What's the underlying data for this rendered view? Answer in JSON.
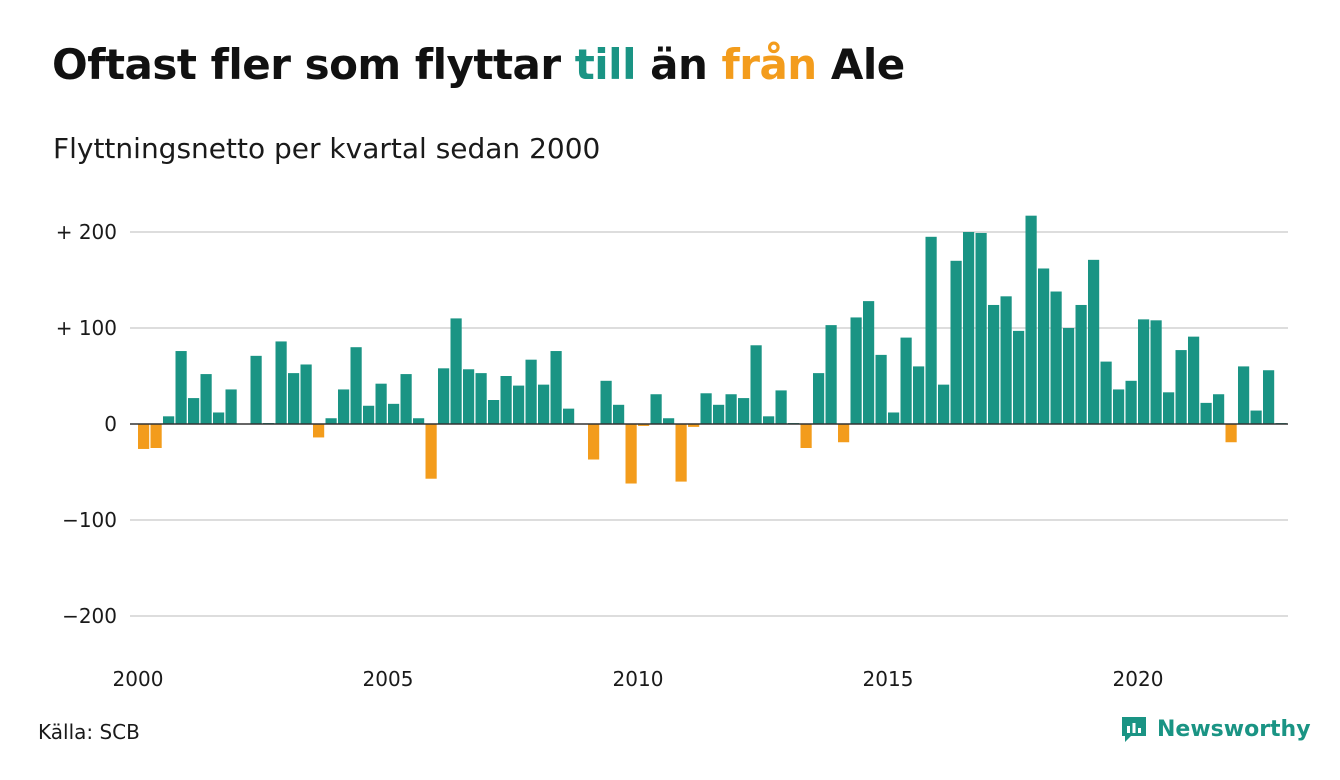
{
  "header": {
    "title_parts": [
      "Oftast fler som flyttar ",
      "till",
      " än ",
      "från",
      " Ale"
    ],
    "subtitle": "Flyttningsnetto per kvartal sedan 2000"
  },
  "footer": {
    "source": "Källa: SCB",
    "brand": "Newsworthy"
  },
  "icons": {
    "brand_logo": "newsworthy-logo-icon"
  },
  "colors": {
    "positive": "#1a9484",
    "negative": "#f39c1c",
    "grid": "#dddddd",
    "zero_line": "#333333"
  },
  "chart_data": {
    "type": "bar",
    "title": "Oftast fler som flyttar till än från Ale",
    "subtitle": "Flyttningsnetto per kvartal sedan 2000",
    "x": [
      "2000 Q1",
      "2000 Q2",
      "2000 Q3",
      "2000 Q4",
      "2001 Q1",
      "2001 Q2",
      "2001 Q3",
      "2001 Q4",
      "2002 Q1",
      "2002 Q2",
      "2002 Q3",
      "2002 Q4",
      "2003 Q1",
      "2003 Q2",
      "2003 Q3",
      "2003 Q4",
      "2004 Q1",
      "2004 Q2",
      "2004 Q3",
      "2004 Q4",
      "2005 Q1",
      "2005 Q2",
      "2005 Q3",
      "2005 Q4",
      "2006 Q1",
      "2006 Q2",
      "2006 Q3",
      "2006 Q4",
      "2007 Q1",
      "2007 Q2",
      "2007 Q3",
      "2007 Q4",
      "2008 Q1",
      "2008 Q2",
      "2008 Q3",
      "2008 Q4",
      "2009 Q1",
      "2009 Q2",
      "2009 Q3",
      "2009 Q4",
      "2010 Q1",
      "2010 Q2",
      "2010 Q3",
      "2010 Q4",
      "2011 Q1",
      "2011 Q2",
      "2011 Q3",
      "2011 Q4",
      "2012 Q1",
      "2012 Q2",
      "2012 Q3",
      "2012 Q4",
      "2013 Q1",
      "2013 Q2",
      "2013 Q3",
      "2013 Q4",
      "2014 Q1",
      "2014 Q2",
      "2014 Q3",
      "2014 Q4",
      "2015 Q1",
      "2015 Q2",
      "2015 Q3",
      "2015 Q4",
      "2016 Q1",
      "2016 Q2",
      "2016 Q3",
      "2016 Q4",
      "2017 Q1",
      "2017 Q2",
      "2017 Q3",
      "2017 Q4",
      "2018 Q1",
      "2018 Q2",
      "2018 Q3",
      "2018 Q4",
      "2019 Q1",
      "2019 Q2",
      "2019 Q3",
      "2019 Q4",
      "2020 Q1",
      "2020 Q2",
      "2020 Q3",
      "2020 Q4",
      "2021 Q1",
      "2021 Q2",
      "2021 Q3",
      "2021 Q4",
      "2022 Q1",
      "2022 Q2",
      "2022 Q3",
      "2022 Q4",
      "2023 Q1"
    ],
    "values": [
      -26,
      -25,
      8,
      76,
      27,
      52,
      12,
      36,
      0,
      71,
      1,
      86,
      53,
      62,
      -14,
      6,
      36,
      80,
      19,
      42,
      21,
      52,
      6,
      -57,
      58,
      110,
      57,
      53,
      25,
      50,
      40,
      67,
      41,
      76,
      16,
      0,
      -37,
      45,
      20,
      -62,
      -2,
      31,
      6,
      -60,
      -3,
      32,
      20,
      31,
      27,
      82,
      8,
      35,
      1,
      -25,
      53,
      103,
      -19,
      111,
      128,
      72,
      12,
      90,
      60,
      195,
      41,
      170,
      200,
      199,
      124,
      133,
      97,
      217,
      162,
      138,
      100,
      124,
      171,
      65,
      36,
      45,
      109,
      108,
      33,
      77,
      91,
      22,
      31,
      -19,
      60,
      14,
      56,
      1,
      0
    ],
    "ylim": [
      -200,
      200
    ],
    "yticks": [
      200,
      100,
      0,
      -100,
      -200
    ],
    "ytick_labels": [
      "+ 200",
      "+ 100",
      "0",
      "−100",
      "−200"
    ],
    "xticks": [
      2000,
      2005,
      2010,
      2015,
      2020
    ],
    "xtick_labels": [
      "2000",
      "2005",
      "2010",
      "2015",
      "2020"
    ],
    "source": "Källa: SCB",
    "grid": true
  }
}
